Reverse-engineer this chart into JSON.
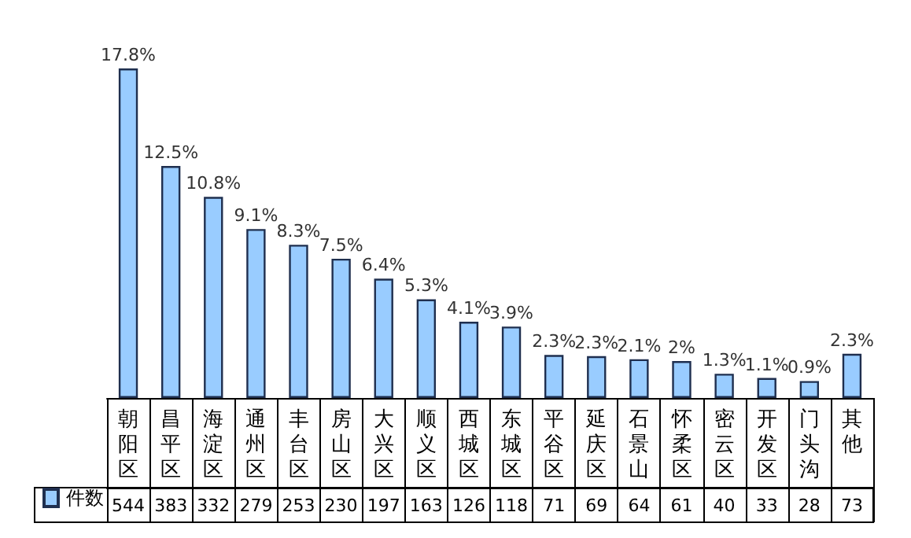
{
  "chart_data": {
    "type": "bar",
    "categories": [
      "朝阳区",
      "昌平区",
      "海淀区",
      "通州区",
      "丰台区",
      "房山区",
      "大兴区",
      "顺义区",
      "西城区",
      "东城区",
      "平谷区",
      "延庆区",
      "石景山",
      "怀柔区",
      "密云区",
      "开发区",
      "门头沟",
      "其他"
    ],
    "series": [
      {
        "name": "件数",
        "color": "#99ccff",
        "values": [
          544,
          383,
          332,
          279,
          253,
          230,
          197,
          163,
          126,
          118,
          71,
          69,
          64,
          61,
          40,
          33,
          28,
          73
        ]
      }
    ],
    "annotations": [
      {
        "text": "17.8%",
        "x": "朝阳区",
        "y": 544
      },
      {
        "text": "12.5%",
        "x": "昌平区",
        "y": 383
      },
      {
        "text": "10.8%",
        "x": "海淀区",
        "y": 332
      },
      {
        "text": "9.1%",
        "x": "通州区",
        "y": 279
      },
      {
        "text": "8.3%",
        "x": "丰台区",
        "y": 253
      },
      {
        "text": "7.5%",
        "x": "房山区",
        "y": 230
      },
      {
        "text": "6.4%",
        "x": "大兴区",
        "y": 197
      },
      {
        "text": "5.3%",
        "x": "顺义区",
        "y": 163
      },
      {
        "text": "4.1%",
        "x": "西城区",
        "y": 126
      },
      {
        "text": "3.9%",
        "x": "东城区",
        "y": 118
      },
      {
        "text": "2.3%",
        "x": "平谷区",
        "y": 71
      },
      {
        "text": "2.3%",
        "x": "延庆区",
        "y": 69
      },
      {
        "text": "2.1%",
        "x": "石景山",
        "y": 64
      },
      {
        "text": "2%",
        "x": "怀柔区",
        "y": 61
      },
      {
        "text": "1.3%",
        "x": "密云区",
        "y": 40
      },
      {
        "text": "1.1%",
        "x": "开发区",
        "y": 33
      },
      {
        "text": "0.9%",
        "x": "门头沟",
        "y": 28
      },
      {
        "text": "2.3%",
        "x": "其他",
        "y": 73
      }
    ],
    "data_labels": true,
    "legend": "bottom left",
    "grid": false
  }
}
